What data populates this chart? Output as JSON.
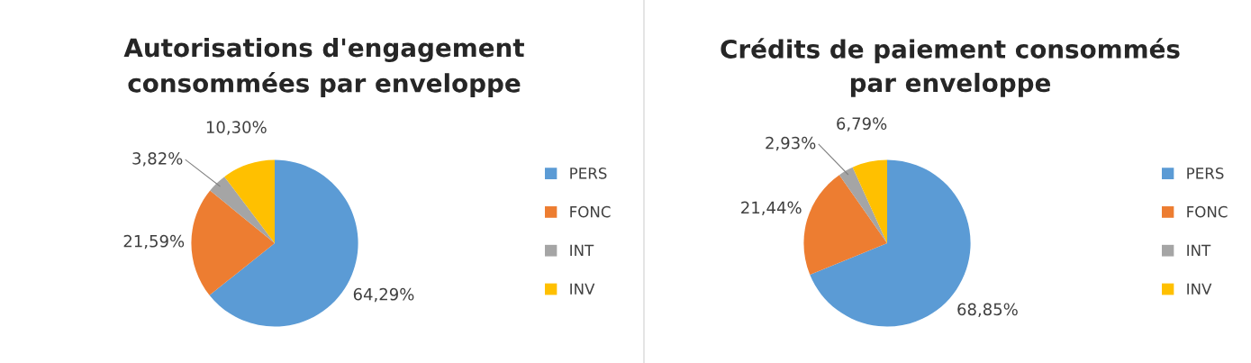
{
  "chart_data": [
    {
      "type": "pie",
      "title": "Autorisations d'engagement\nconsommées par enveloppe",
      "categories": [
        "PERS",
        "FONC",
        "INT",
        "INV"
      ],
      "values": [
        64.29,
        21.59,
        3.82,
        10.3
      ],
      "colors": [
        "#5b9bd5",
        "#ed7d31",
        "#a5a5a5",
        "#ffc000"
      ],
      "value_labels": [
        "64,29%",
        "21,59%",
        "3,82%",
        "10,30%"
      ],
      "legend": "right"
    },
    {
      "type": "pie",
      "title": "Crédits de paiement consommés\npar enveloppe",
      "categories": [
        "PERS",
        "FONC",
        "INT",
        "INV"
      ],
      "values": [
        68.85,
        21.44,
        2.93,
        6.79
      ],
      "colors": [
        "#5b9bd5",
        "#ed7d31",
        "#a5a5a5",
        "#ffc000"
      ],
      "value_labels": [
        "68,85%",
        "21,44%",
        "2,93%",
        "6,79%"
      ],
      "legend": "right"
    }
  ]
}
